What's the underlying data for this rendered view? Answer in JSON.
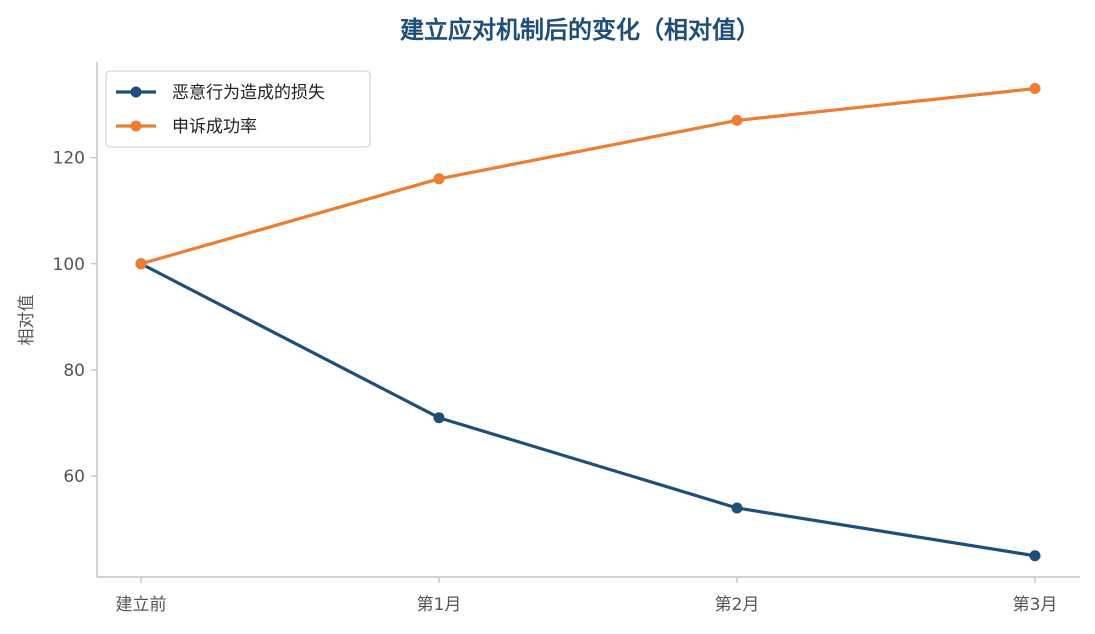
{
  "chart_data": {
    "type": "line",
    "title": "建立应对机制后的变化（相对值）",
    "xlabel": "",
    "ylabel": "相对值",
    "categories": [
      "建立前",
      "第1月",
      "第2月",
      "第3月"
    ],
    "series": [
      {
        "name": "恶意行为造成的损失",
        "values": [
          100,
          71,
          54,
          45
        ],
        "color": "#1f4e79"
      },
      {
        "name": "申诉成功率",
        "values": [
          100,
          116,
          127,
          133
        ],
        "color": "#ed7d31"
      }
    ],
    "ylim": [
      41,
      138
    ],
    "yticks": [
      60,
      80,
      100,
      120
    ],
    "grid": false,
    "legend_position": "top-left"
  }
}
